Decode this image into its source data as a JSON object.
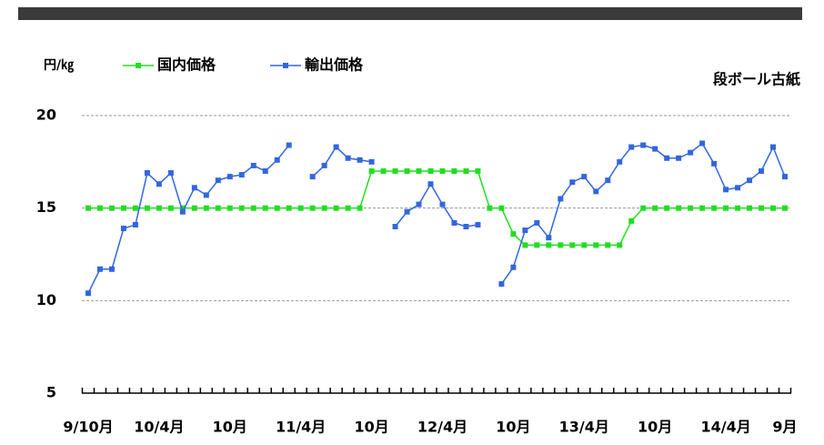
{
  "chart_data": {
    "type": "line",
    "title": "段ボール古紙",
    "y_label": "円/㎏",
    "categories": [
      "9/10月",
      null,
      null,
      null,
      null,
      null,
      "10/4月",
      null,
      null,
      null,
      null,
      null,
      "10月",
      null,
      null,
      null,
      null,
      null,
      "11/4月",
      null,
      null,
      null,
      null,
      null,
      "10月",
      null,
      null,
      null,
      null,
      null,
      "12/4月",
      null,
      null,
      null,
      null,
      null,
      "10月",
      null,
      null,
      null,
      null,
      null,
      "13/4月",
      null,
      null,
      null,
      null,
      null,
      "10月",
      null,
      null,
      null,
      null,
      null,
      "14/4月",
      null,
      null,
      null,
      null,
      "9月"
    ],
    "series": [
      {
        "name": "国内価格",
        "color": "#22dd22",
        "values": [
          15,
          15,
          15,
          15,
          15,
          15,
          15,
          15,
          15,
          15,
          15,
          15,
          15,
          15,
          15,
          15,
          15,
          15,
          15,
          15,
          15,
          15,
          15,
          15,
          17,
          17,
          17,
          17,
          17,
          17,
          17,
          17,
          17,
          17,
          15,
          15,
          13.6,
          13,
          13,
          13,
          13,
          13,
          13,
          13,
          13,
          13,
          14.3,
          15,
          15,
          15,
          15,
          15,
          15,
          15,
          15,
          15,
          15,
          15,
          15,
          15
        ]
      },
      {
        "name": "輸出価格",
        "color": "#3366dd",
        "values": [
          10.4,
          11.7,
          11.7,
          13.9,
          14.1,
          16.9,
          16.3,
          16.9,
          14.8,
          16.1,
          15.7,
          16.5,
          16.7,
          16.8,
          17.3,
          17.0,
          17.6,
          18.4,
          null,
          16.7,
          17.3,
          18.3,
          17.7,
          17.6,
          17.5,
          null,
          14.0,
          14.8,
          15.2,
          16.3,
          15.2,
          14.2,
          14.0,
          14.1,
          null,
          10.9,
          11.8,
          13.8,
          14.2,
          13.4,
          15.5,
          16.4,
          16.7,
          15.9,
          16.5,
          17.5,
          18.3,
          18.4,
          18.2,
          17.7,
          17.7,
          18.0,
          18.5,
          17.4,
          16.0,
          16.1,
          16.5,
          17.0,
          18.3,
          16.7
        ]
      }
    ],
    "ylim": [
      5,
      20
    ],
    "yticks": [
      5,
      10,
      15,
      20
    ],
    "grid": true
  }
}
